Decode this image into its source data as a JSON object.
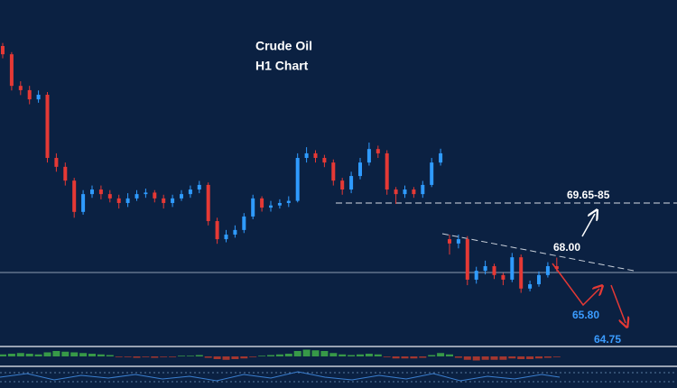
{
  "chart_data": {
    "type": "candlestick",
    "title": "Crude Oil",
    "subtitle": "H1  Chart",
    "up_color": "#2f9bff",
    "down_color": "#e53935",
    "ylim": [
      65.13,
      76.4
    ],
    "open": [
      74.9,
      74.63,
      73.6,
      73.46,
      73.16,
      73.31,
      71.25,
      70.96,
      70.51,
      69.49,
      70.07,
      70.22,
      70.07,
      69.93,
      69.78,
      69.93,
      70.07,
      70.12,
      69.93,
      69.78,
      69.93,
      70.07,
      70.22,
      70.37,
      69.19,
      68.6,
      68.75,
      68.9,
      69.34,
      69.93,
      69.63,
      69.7,
      69.78,
      69.85,
      71.25,
      71.4,
      71.25,
      71.1,
      70.51,
      70.22,
      70.66,
      71.1,
      71.54,
      71.4,
      70.22,
      70.07,
      70.22,
      70.07,
      70.37,
      71.1,
      68.6,
      68.46,
      68.6,
      67.28,
      67.57,
      67.72,
      67.43,
      67.28,
      68.01,
      66.99,
      67.13,
      67.43,
      67.72
    ],
    "high": [
      75.0,
      74.7,
      73.75,
      73.6,
      73.45,
      73.4,
      71.4,
      71.1,
      70.6,
      70.2,
      70.35,
      70.35,
      70.2,
      70.05,
      70.1,
      70.2,
      70.25,
      70.2,
      70.05,
      70.05,
      70.2,
      70.35,
      70.5,
      70.45,
      69.3,
      68.9,
      69.05,
      69.45,
      70.05,
      70.0,
      69.85,
      69.9,
      70.0,
      71.4,
      71.6,
      71.5,
      71.35,
      71.2,
      70.6,
      70.8,
      71.25,
      71.75,
      71.65,
      71.5,
      70.3,
      70.35,
      70.3,
      70.5,
      71.25,
      71.55,
      68.75,
      68.75,
      68.7,
      67.7,
      67.9,
      67.8,
      67.5,
      68.15,
      68.1,
      67.25,
      67.55,
      67.85,
      68.0
    ],
    "low": [
      74.5,
      73.45,
      73.3,
      73.0,
      73.05,
      71.1,
      70.8,
      70.35,
      69.3,
      69.4,
      69.95,
      69.9,
      69.8,
      69.6,
      69.65,
      69.85,
      69.95,
      69.8,
      69.6,
      69.65,
      69.85,
      69.95,
      70.1,
      69.05,
      68.45,
      68.5,
      68.65,
      68.8,
      69.25,
      69.5,
      69.5,
      69.6,
      69.65,
      69.8,
      71.1,
      71.1,
      70.95,
      70.35,
      70.05,
      70.1,
      70.55,
      71.0,
      71.25,
      70.05,
      69.75,
      69.95,
      69.95,
      69.95,
      70.3,
      71.0,
      68.1,
      68.3,
      67.1,
      67.15,
      67.45,
      67.3,
      67.1,
      67.2,
      66.85,
      66.9,
      67.05,
      67.35,
      67.55
    ],
    "close": [
      74.63,
      73.6,
      73.46,
      73.16,
      73.31,
      71.25,
      70.96,
      70.51,
      69.49,
      70.07,
      70.22,
      70.07,
      69.93,
      69.78,
      69.93,
      70.07,
      70.12,
      69.93,
      69.78,
      69.93,
      70.07,
      70.22,
      70.37,
      69.19,
      68.6,
      68.75,
      68.9,
      69.34,
      69.93,
      69.63,
      69.7,
      69.78,
      69.85,
      71.25,
      71.4,
      71.25,
      71.1,
      70.51,
      70.22,
      70.66,
      71.1,
      71.54,
      71.4,
      70.22,
      70.07,
      70.22,
      70.07,
      70.37,
      71.1,
      71.4,
      68.46,
      68.6,
      67.28,
      67.57,
      67.72,
      67.43,
      67.28,
      68.01,
      66.99,
      67.13,
      67.43,
      67.72,
      67.63
    ],
    "macd": [
      0.3,
      0.4,
      0.5,
      0.4,
      0.3,
      0.6,
      0.8,
      0.7,
      0.6,
      0.5,
      0.4,
      0.3,
      0.2,
      -0.1,
      -0.1,
      -0.2,
      -0.1,
      -0.2,
      -0.1,
      -0.1,
      0.1,
      0.1,
      0.2,
      -0.2,
      -0.4,
      -0.5,
      -0.4,
      -0.3,
      -0.1,
      0.1,
      0.2,
      0.3,
      0.4,
      0.8,
      1.0,
      0.9,
      0.8,
      0.5,
      0.3,
      0.2,
      0.3,
      0.4,
      0.3,
      -0.1,
      -0.3,
      -0.3,
      -0.3,
      -0.2,
      0.2,
      0.5,
      0.3,
      -0.2,
      -0.5,
      -0.6,
      -0.5,
      -0.5,
      -0.5,
      -0.3,
      -0.4,
      -0.4,
      -0.3,
      -0.2,
      -0.1
    ],
    "macd_ylim": [
      -1.2,
      1.2
    ],
    "macd_up_color": "#3fae49",
    "macd_down_color": "#c0392b",
    "annotations": [
      "69.65-85",
      "68.00",
      "65.80",
      "64.75"
    ]
  }
}
